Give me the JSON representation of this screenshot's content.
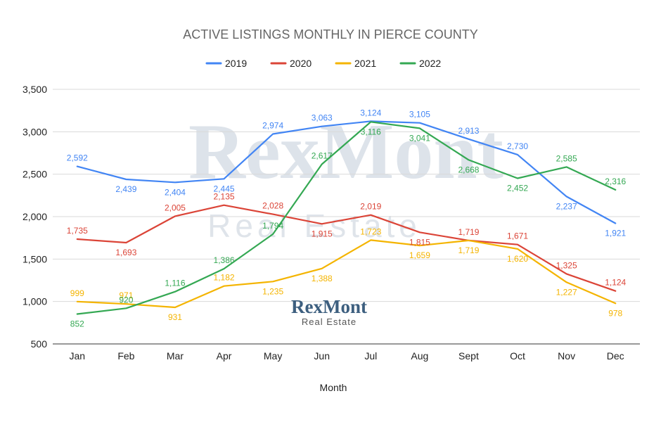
{
  "chart_data": {
    "type": "line",
    "title": "ACTIVE LISTINGS MONTHLY IN PIERCE COUNTY",
    "xlabel": "Month",
    "ylabel": "",
    "ylim": [
      500,
      3500
    ],
    "yticks": [
      "3,500",
      "3,000",
      "2,500",
      "2,000",
      "1,500",
      "1,000",
      "500"
    ],
    "ytick_values": [
      3500,
      3000,
      2500,
      2000,
      1500,
      1000,
      500
    ],
    "grid": true,
    "legend_position": "top",
    "categories": [
      "Jan",
      "Feb",
      "Mar",
      "Apr",
      "May",
      "Jun",
      "Jul",
      "Aug",
      "Sept",
      "Oct",
      "Nov",
      "Dec"
    ],
    "series": [
      {
        "name": "2019",
        "color": "#4285f4",
        "values": [
          2592,
          2439,
          2404,
          2445,
          2974,
          3063,
          3124,
          3105,
          2913,
          2730,
          2237,
          1921
        ],
        "labels": [
          "2,592",
          "2,439",
          "2,404",
          "2,445",
          "2,974",
          "3,063",
          "3,124",
          "3,105",
          "2,913",
          "2,730",
          "2,237",
          "1,921"
        ]
      },
      {
        "name": "2020",
        "color": "#db4437",
        "values": [
          1735,
          1693,
          2005,
          2135,
          2028,
          1915,
          2019,
          1815,
          1719,
          1671,
          1325,
          1124
        ],
        "labels": [
          "1,735",
          "1,693",
          "2,005",
          "2,135",
          "2,028",
          "1,915",
          "2,019",
          "1,815",
          "1,719",
          "1,671",
          "1,325",
          "1,124"
        ]
      },
      {
        "name": "2021",
        "color": "#f4b400",
        "values": [
          999,
          971,
          931,
          1182,
          1235,
          1388,
          1723,
          1659,
          1719,
          1620,
          1227,
          978
        ],
        "labels": [
          "999",
          "971",
          "931",
          "1,182",
          "1,235",
          "1,388",
          "1,723",
          "1,659",
          "1,719",
          "1,620",
          "1,227",
          "978"
        ]
      },
      {
        "name": "2022",
        "color": "#34a853",
        "values": [
          852,
          920,
          1116,
          1386,
          1794,
          2617,
          3116,
          3041,
          2668,
          2452,
          2585,
          2316
        ],
        "labels": [
          "852",
          "920",
          "1,116",
          "1,386",
          "1,794",
          "2,617",
          "3,116",
          "3,041",
          "2,668",
          "2,452",
          "2,585",
          "2,316"
        ]
      }
    ]
  },
  "branding": {
    "watermark_name": "RexMont",
    "watermark_sub": "Real Estate",
    "logo_name": "RexMont",
    "logo_sub": "Real Estate"
  }
}
